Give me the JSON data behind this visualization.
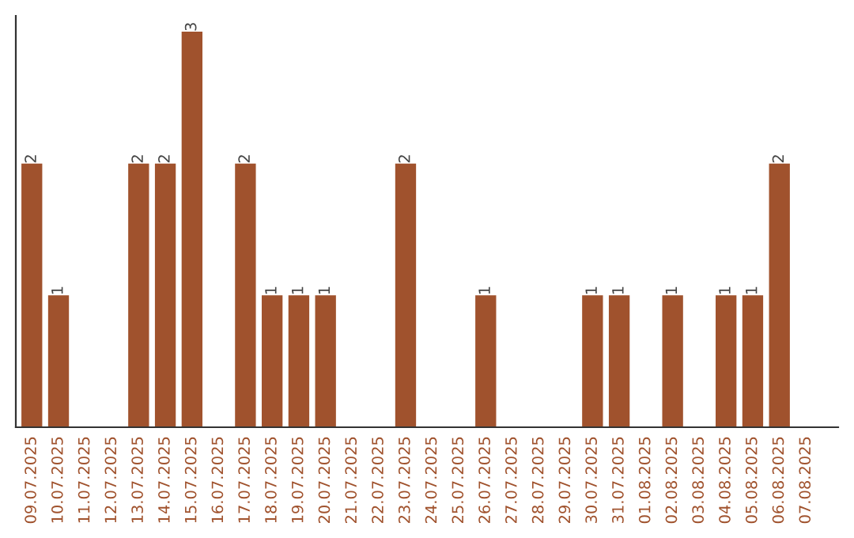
{
  "chart_data": {
    "type": "bar",
    "categories": [
      "09.07.2025",
      "10.07.2025",
      "11.07.2025",
      "12.07.2025",
      "13.07.2025",
      "14.07.2025",
      "15.07.2025",
      "16.07.2025",
      "17.07.2025",
      "18.07.2025",
      "19.07.2025",
      "20.07.2025",
      "21.07.2025",
      "22.07.2025",
      "23.07.2025",
      "24.07.2025",
      "25.07.2025",
      "26.07.2025",
      "27.07.2025",
      "28.07.2025",
      "29.07.2025",
      "30.07.2025",
      "31.07.2025",
      "01.08.2025",
      "02.08.2025",
      "03.08.2025",
      "04.08.2025",
      "05.08.2025",
      "06.08.2025",
      "07.08.2025"
    ],
    "values": [
      2,
      1,
      0,
      0,
      2,
      2,
      3,
      0,
      2,
      1,
      1,
      1,
      0,
      0,
      2,
      0,
      0,
      1,
      0,
      0,
      0,
      1,
      1,
      0,
      1,
      0,
      1,
      1,
      2,
      0
    ],
    "value_labels": [
      "2",
      "1",
      null,
      null,
      "2",
      "2",
      "3",
      null,
      "2",
      "1",
      "1",
      "1",
      null,
      null,
      "2",
      null,
      null,
      "1",
      null,
      null,
      null,
      "1",
      "1",
      null,
      "1",
      null,
      "1",
      "1",
      "2",
      null
    ],
    "color": "#a0522d",
    "ylim": [
      0,
      3.12
    ],
    "tick_labels": "x",
    "grid": false,
    "legend": false
  }
}
